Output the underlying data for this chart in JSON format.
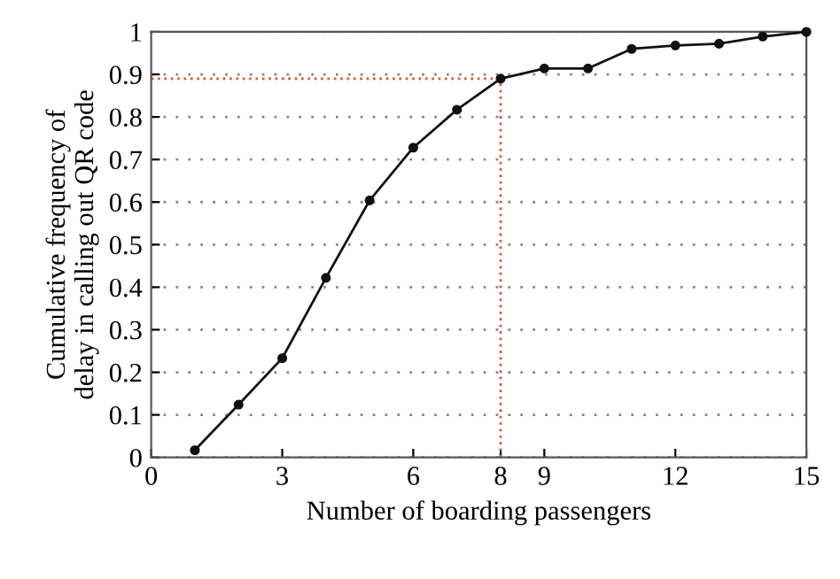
{
  "chart_data": {
    "type": "line",
    "xlabel": "Number of boarding passengers",
    "ylabel": "Cumulative frequency of\ndelay in calling out QR code",
    "x": [
      1,
      2,
      3,
      4,
      5,
      6,
      7,
      8,
      9,
      10,
      11,
      12,
      13,
      14,
      15
    ],
    "series": [
      {
        "color": "#111111",
        "values": [
          0.017,
          0.124,
          0.233,
          0.422,
          0.604,
          0.728,
          0.817,
          0.89,
          0.914,
          0.914,
          0.96,
          0.968,
          0.972,
          0.989,
          1.0
        ]
      }
    ],
    "xlim": [
      0,
      15
    ],
    "ylim": [
      0,
      1
    ],
    "xticks": [
      0,
      3,
      6,
      8,
      9,
      12,
      15
    ],
    "yticks": [
      0,
      0.1,
      0.2,
      0.3,
      0.4,
      0.5,
      0.6,
      0.7,
      0.8,
      0.9,
      1
    ],
    "grid": "y",
    "marker": "circle",
    "line_style": "solid",
    "ref_lines": [
      {
        "axis": "x",
        "value": 8,
        "color": "#d0603a",
        "line_style": "dotted"
      },
      {
        "axis": "y",
        "value": 0.89,
        "color": "#d0603a",
        "line_style": "dotted"
      }
    ]
  }
}
